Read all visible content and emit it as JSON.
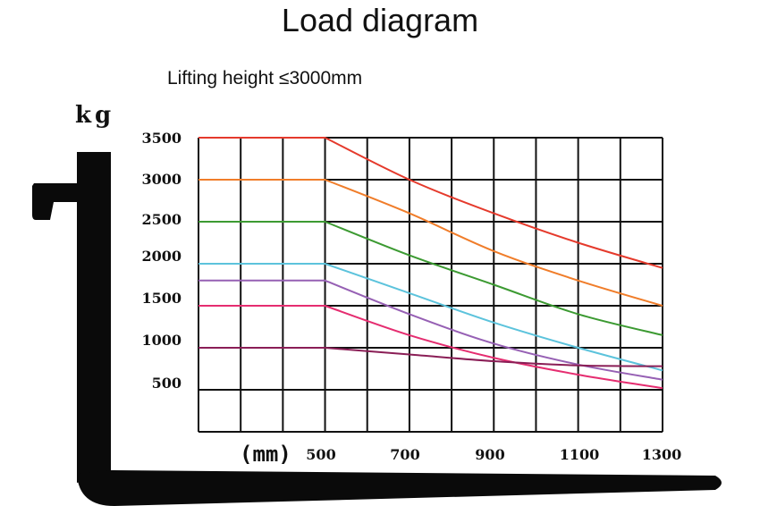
{
  "chart_data": {
    "type": "line",
    "title": "Load diagram",
    "subtitle": "Lifting height ≤3000mm",
    "ylabel": "kg",
    "xlabel": "(mm)",
    "x_tick_labels": [
      "500",
      "700",
      "900",
      "1100",
      "1300"
    ],
    "y_tick_labels": [
      "500",
      "1000",
      "1500",
      "2000",
      "2500",
      "3000",
      "3500"
    ],
    "xlim": [
      200,
      1300
    ],
    "ylim": [
      0,
      3500
    ],
    "grid": true,
    "x": [
      200,
      500,
      700,
      900,
      1100,
      1300
    ],
    "series": [
      {
        "color": "#e53a2c",
        "values": [
          3500,
          3500,
          3000,
          2600,
          2250,
          1950
        ]
      },
      {
        "color": "#f07d2a",
        "values": [
          3000,
          3000,
          2600,
          2150,
          1800,
          1500
        ]
      },
      {
        "color": "#3c9a32",
        "values": [
          2500,
          2500,
          2100,
          1750,
          1400,
          1150
        ]
      },
      {
        "color": "#5cc3dc",
        "values": [
          2000,
          2000,
          1650,
          1300,
          1000,
          730
        ]
      },
      {
        "color": "#9660b4",
        "values": [
          1800,
          1800,
          1400,
          1050,
          800,
          620
        ]
      },
      {
        "color": "#e52d70",
        "values": [
          1500,
          1500,
          1150,
          880,
          680,
          520
        ]
      },
      {
        "color": "#8a1e56",
        "values": [
          1000,
          1000,
          920,
          840,
          790,
          780
        ]
      }
    ]
  },
  "colors": {
    "fork": "#0a0a0a",
    "grid": "#111111"
  },
  "icons": {
    "fork": "forklift-fork-silhouette"
  }
}
